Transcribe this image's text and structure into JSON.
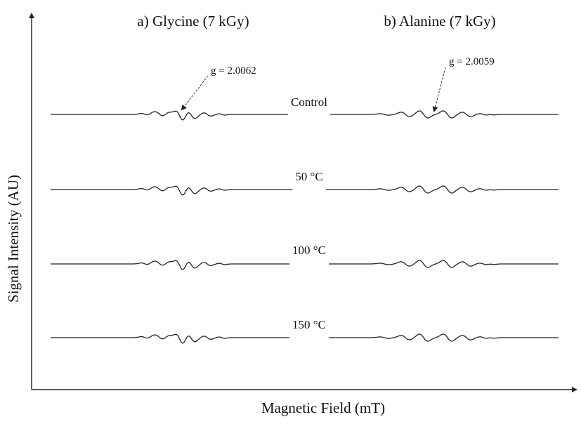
{
  "chart_data": {
    "type": "line",
    "xlabel": "Magnetic Field (mT)",
    "ylabel": "Signal Intensity (AU)",
    "grid": false,
    "panels": [
      {
        "title": "a) Glycine (7 kGy)",
        "g_annotation": "g = 2.0062"
      },
      {
        "title": "b) Alanine (7 kGy)",
        "g_annotation": "g = 2.0059"
      }
    ],
    "series": [
      {
        "name": "Control"
      },
      {
        "name": "50 °C"
      },
      {
        "name": "100 °C"
      },
      {
        "name": "150 °C"
      }
    ]
  }
}
